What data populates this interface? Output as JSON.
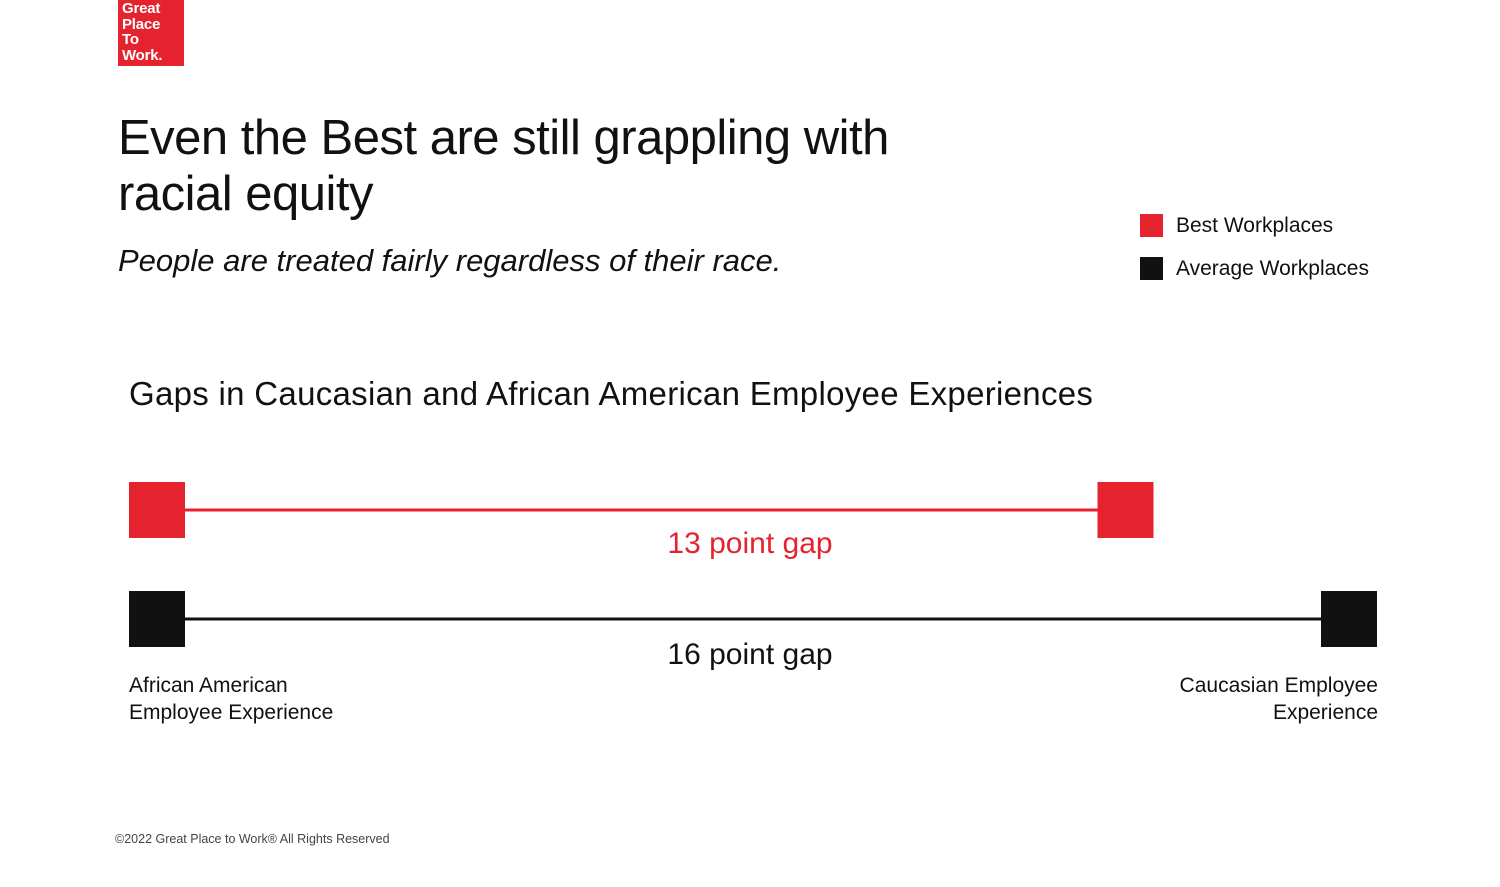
{
  "logo": {
    "lines": [
      "Great",
      "Place",
      "To",
      "Work."
    ],
    "color": "#E4232F"
  },
  "headline": "Even the Best are still grappling with racial equity",
  "subtitle": "People are treated fairly regardless of their race.",
  "colors": {
    "best": "#E4232F",
    "average": "#111111"
  },
  "chart_data": {
    "type": "dumbbell",
    "title": "Gaps in Caucasian and African American Employee Experiences",
    "legend_position": "top-right",
    "endpoints": {
      "left": [
        "African American",
        "Employee Experience"
      ],
      "right": [
        "Caucasian Employee",
        "Experience"
      ]
    },
    "series": [
      {
        "name": "Best Workplaces",
        "color": "#E4232F",
        "gap": 13,
        "gap_label": "13 point gap"
      },
      {
        "name": "Average Workplaces",
        "color": "#111111",
        "gap": 16,
        "gap_label": "16 point gap"
      }
    ]
  },
  "footer": "©2022 Great Place to Work® All Rights Reserved"
}
